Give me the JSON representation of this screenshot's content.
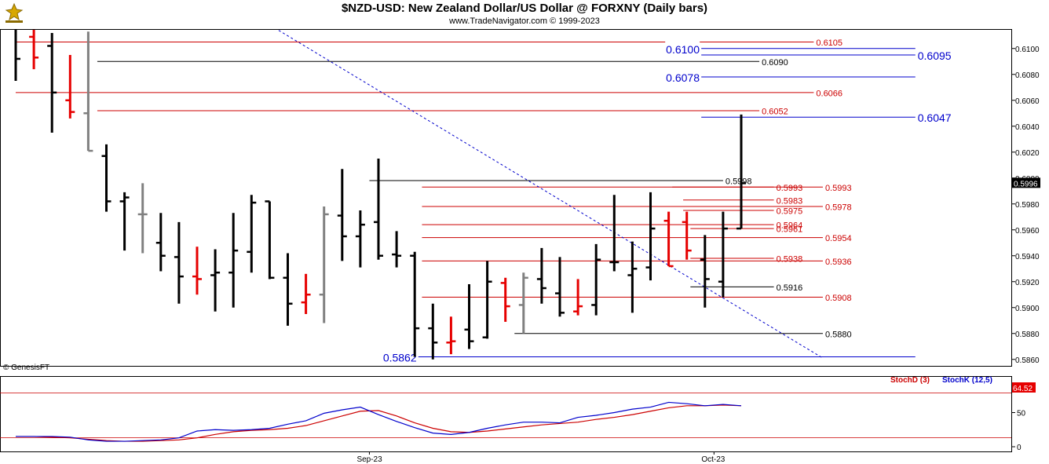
{
  "header": {
    "title": "$NZD-USD:  New Zealand Dollar/US Dollar @ FORXNY  (Daily bars)",
    "subtitle": "www.TradeNavigator.com © 1999-2023"
  },
  "copyright_note": "© GenesisFT",
  "colors": {
    "up": "#000000",
    "down": "#e60000",
    "flat": "#808080",
    "hline_red": "#cc0000",
    "hline_blue": "#0000cc",
    "hline_black": "#000000",
    "stoch_d": "#cc0000",
    "stoch_k": "#0000cc"
  },
  "chart_data": [
    {
      "type": "ohlc",
      "title": "$NZD-USD:  New Zealand Dollar/US Dollar @ FORXNY  (Daily bars)",
      "ylim": [
        0.5855,
        0.6115
      ],
      "y_ticks": [
        "0.6100",
        "0.6080",
        "0.6060",
        "0.6040",
        "0.6020",
        "0.6000",
        "0.5980",
        "0.5960",
        "0.5940",
        "0.5920",
        "0.5900",
        "0.5880",
        "0.5860"
      ],
      "x_labels": [
        {
          "label": "Sep-23",
          "bar": 19.5
        },
        {
          "label": "Oct-23",
          "bar": 38.5
        }
      ],
      "last_price": "0.5996",
      "bars": [
        {
          "o": 0.6139,
          "h": 0.6139,
          "l": 0.6075,
          "c": 0.6092,
          "d": "up"
        },
        {
          "o": 0.6109,
          "h": 0.6115,
          "l": 0.6084,
          "c": 0.6093,
          "d": "down"
        },
        {
          "o": 0.6102,
          "h": 0.6112,
          "l": 0.6035,
          "c": 0.6066,
          "d": "up"
        },
        {
          "o": 0.606,
          "h": 0.6095,
          "l": 0.6046,
          "c": 0.6051,
          "d": "down"
        },
        {
          "o": 0.605,
          "h": 0.6113,
          "l": 0.6021,
          "c": 0.6021,
          "d": "flat"
        },
        {
          "o": 0.6017,
          "h": 0.6026,
          "l": 0.5974,
          "c": 0.5982,
          "d": "up"
        },
        {
          "o": 0.5982,
          "h": 0.5989,
          "l": 0.5944,
          "c": 0.5985,
          "d": "up"
        },
        {
          "o": 0.5972,
          "h": 0.5996,
          "l": 0.5942,
          "c": 0.5972,
          "d": "flat"
        },
        {
          "o": 0.595,
          "h": 0.5973,
          "l": 0.5928,
          "c": 0.594,
          "d": "up"
        },
        {
          "o": 0.5939,
          "h": 0.5966,
          "l": 0.5903,
          "c": 0.5924,
          "d": "up"
        },
        {
          "o": 0.5924,
          "h": 0.5947,
          "l": 0.591,
          "c": 0.5922,
          "d": "down"
        },
        {
          "o": 0.5925,
          "h": 0.5945,
          "l": 0.5897,
          "c": 0.5927,
          "d": "up"
        },
        {
          "o": 0.5927,
          "h": 0.5973,
          "l": 0.59,
          "c": 0.5944,
          "d": "up"
        },
        {
          "o": 0.5943,
          "h": 0.5987,
          "l": 0.5927,
          "c": 0.5981,
          "d": "up"
        },
        {
          "o": 0.5982,
          "h": 0.5982,
          "l": 0.5922,
          "c": 0.5923,
          "d": "up"
        },
        {
          "o": 0.5923,
          "h": 0.5942,
          "l": 0.5886,
          "c": 0.5903,
          "d": "up"
        },
        {
          "o": 0.5904,
          "h": 0.5926,
          "l": 0.5895,
          "c": 0.591,
          "d": "down"
        },
        {
          "o": 0.591,
          "h": 0.5978,
          "l": 0.5888,
          "c": 0.5972,
          "d": "flat"
        },
        {
          "o": 0.5971,
          "h": 0.6007,
          "l": 0.5936,
          "c": 0.5955,
          "d": "up"
        },
        {
          "o": 0.5955,
          "h": 0.5975,
          "l": 0.5931,
          "c": 0.5964,
          "d": "up"
        },
        {
          "o": 0.5966,
          "h": 0.6015,
          "l": 0.5937,
          "c": 0.594,
          "d": "up"
        },
        {
          "o": 0.5941,
          "h": 0.5959,
          "l": 0.5931,
          "c": 0.594,
          "d": "up"
        },
        {
          "o": 0.594,
          "h": 0.5943,
          "l": 0.5862,
          "c": 0.5884,
          "d": "up"
        },
        {
          "o": 0.5884,
          "h": 0.5903,
          "l": 0.586,
          "c": 0.5873,
          "d": "up"
        },
        {
          "o": 0.5873,
          "h": 0.5893,
          "l": 0.5864,
          "c": 0.5874,
          "d": "down"
        },
        {
          "o": 0.5883,
          "h": 0.5918,
          "l": 0.5868,
          "c": 0.5874,
          "d": "up"
        },
        {
          "o": 0.5877,
          "h": 0.5936,
          "l": 0.5876,
          "c": 0.592,
          "d": "up"
        },
        {
          "o": 0.5919,
          "h": 0.5923,
          "l": 0.5889,
          "c": 0.5901,
          "d": "down"
        },
        {
          "o": 0.5902,
          "h": 0.5927,
          "l": 0.588,
          "c": 0.5923,
          "d": "flat"
        },
        {
          "o": 0.5922,
          "h": 0.5946,
          "l": 0.5903,
          "c": 0.5915,
          "d": "up"
        },
        {
          "o": 0.5911,
          "h": 0.5939,
          "l": 0.5893,
          "c": 0.5896,
          "d": "up"
        },
        {
          "o": 0.5897,
          "h": 0.5922,
          "l": 0.5894,
          "c": 0.5901,
          "d": "down"
        },
        {
          "o": 0.5902,
          "h": 0.5949,
          "l": 0.5894,
          "c": 0.5937,
          "d": "up"
        },
        {
          "o": 0.5935,
          "h": 0.5987,
          "l": 0.5928,
          "c": 0.5935,
          "d": "up"
        },
        {
          "o": 0.5925,
          "h": 0.5951,
          "l": 0.5896,
          "c": 0.593,
          "d": "up"
        },
        {
          "o": 0.5931,
          "h": 0.5989,
          "l": 0.5921,
          "c": 0.5961,
          "d": "up"
        },
        {
          "o": 0.5967,
          "h": 0.5974,
          "l": 0.5932,
          "c": 0.5932,
          "d": "down"
        },
        {
          "o": 0.5966,
          "h": 0.5974,
          "l": 0.5937,
          "c": 0.5944,
          "d": "down"
        },
        {
          "o": 0.5937,
          "h": 0.5956,
          "l": 0.59,
          "c": 0.5922,
          "d": "up"
        },
        {
          "o": 0.592,
          "h": 0.5974,
          "l": 0.5908,
          "c": 0.5961,
          "d": "up"
        },
        {
          "o": 0.5961,
          "h": 0.6049,
          "l": 0.5961,
          "c": 0.5996,
          "d": "up"
        }
      ],
      "levels": [
        {
          "value": 0.6105,
          "label": "0.6105",
          "color": "red",
          "from_bar": 0,
          "to_bar": 44,
          "label_pos": "right"
        },
        {
          "value": 0.61,
          "label": "0.6100",
          "color": "blue",
          "from_bar": 37.8,
          "to_bar": 49.6,
          "label_pos": "left",
          "big": true
        },
        {
          "value": 0.6095,
          "label": "0.6095",
          "color": "blue",
          "from_bar": 37.8,
          "to_bar": 49.6,
          "label_pos": "end",
          "big": true
        },
        {
          "value": 0.609,
          "label": "0.6090",
          "color": "black",
          "from_bar": 4.5,
          "to_bar": 41,
          "label_pos": "right"
        },
        {
          "value": 0.6078,
          "label": "0.6078",
          "color": "blue",
          "from_bar": 37.8,
          "to_bar": 49.6,
          "label_pos": "left",
          "big": true
        },
        {
          "value": 0.6066,
          "label": "0.6066",
          "color": "red",
          "from_bar": 0,
          "to_bar": 44,
          "label_pos": "right"
        },
        {
          "value": 0.6052,
          "label": "0.6052",
          "color": "red",
          "from_bar": 4.5,
          "to_bar": 41,
          "label_pos": "right"
        },
        {
          "value": 0.6047,
          "label": "0.6047",
          "color": "blue",
          "from_bar": 37.8,
          "to_bar": 49.6,
          "label_pos": "end",
          "big": true
        },
        {
          "value": 0.5998,
          "label": "0.5998",
          "color": "black",
          "from_bar": 19.5,
          "to_bar": 39,
          "label_pos": "right"
        },
        {
          "value": 0.5993,
          "label": "0.5993",
          "color": "red",
          "from_bar": 22.4,
          "to_bar": 44.5,
          "label_pos": "right"
        },
        {
          "value": 0.5993,
          "label": "0.5993",
          "color": "red",
          "from_bar": 36.2,
          "to_bar": 41.8,
          "label_pos": "right"
        },
        {
          "value": 0.5983,
          "label": "0.5983",
          "color": "red",
          "from_bar": 36.8,
          "to_bar": 41.8,
          "label_pos": "right"
        },
        {
          "value": 0.5978,
          "label": "0.5978",
          "color": "red",
          "from_bar": 22.4,
          "to_bar": 44.5,
          "label_pos": "right"
        },
        {
          "value": 0.5975,
          "label": "0.5975",
          "color": "red",
          "from_bar": 36.8,
          "to_bar": 41.8,
          "label_pos": "right"
        },
        {
          "value": 0.5964,
          "label": "0.5964",
          "color": "red",
          "from_bar": 22.4,
          "to_bar": 41.8,
          "label_pos": "right"
        },
        {
          "value": 0.5961,
          "label": "0.5961",
          "color": "red",
          "from_bar": 37.2,
          "to_bar": 41.8,
          "label_pos": "right"
        },
        {
          "value": 0.5954,
          "label": "0.5954",
          "color": "red",
          "from_bar": 22.4,
          "to_bar": 44.5,
          "label_pos": "right"
        },
        {
          "value": 0.5938,
          "label": "0.5938",
          "color": "red",
          "from_bar": 37.2,
          "to_bar": 41.8,
          "label_pos": "right"
        },
        {
          "value": 0.5936,
          "label": "0.5936",
          "color": "red",
          "from_bar": 22.4,
          "to_bar": 44.5,
          "label_pos": "right"
        },
        {
          "value": 0.5916,
          "label": "0.5916",
          "color": "black",
          "from_bar": 37.2,
          "to_bar": 41.8,
          "label_pos": "right"
        },
        {
          "value": 0.5908,
          "label": "0.5908",
          "color": "red",
          "from_bar": 22.4,
          "to_bar": 44.5,
          "label_pos": "right"
        },
        {
          "value": 0.588,
          "label": "0.5880",
          "color": "black",
          "from_bar": 27.5,
          "to_bar": 44.5,
          "label_pos": "right"
        },
        {
          "value": 0.5862,
          "label": "0.5862",
          "color": "blue",
          "from_bar": 22.2,
          "to_bar": 49.6,
          "label_pos": "left",
          "big": true
        }
      ],
      "trendline": {
        "from": {
          "bar": 14.5,
          "value": 0.6114
        },
        "to": {
          "bar": 44.5,
          "value": 0.5861
        }
      }
    },
    {
      "type": "line",
      "title": "Stochastic",
      "ylim": [
        0,
        100
      ],
      "y_ticks": [
        "50",
        "0"
      ],
      "current_value": "64.52",
      "series": [
        {
          "name": "StochD (3)",
          "color": "#cc0000",
          "values": [
            15,
            15,
            14,
            13,
            11,
            9,
            8,
            8,
            9,
            10,
            13,
            18,
            22,
            24,
            25,
            27,
            31,
            38,
            45,
            52,
            53,
            45,
            35,
            27,
            22,
            21,
            23,
            26,
            29,
            32,
            34,
            36,
            40,
            43,
            47,
            52,
            57,
            60,
            60,
            61,
            60
          ]
        },
        {
          "name": "StochK (12,5)",
          "color": "#0000cc",
          "values": [
            15,
            15,
            15,
            14,
            10,
            8,
            8,
            9,
            10,
            13,
            23,
            25,
            24,
            25,
            27,
            33,
            38,
            49,
            54,
            58,
            47,
            37,
            28,
            20,
            18,
            21,
            27,
            32,
            36,
            36,
            35,
            43,
            46,
            50,
            55,
            58,
            65,
            63,
            60,
            62,
            60
          ]
        }
      ]
    }
  ]
}
